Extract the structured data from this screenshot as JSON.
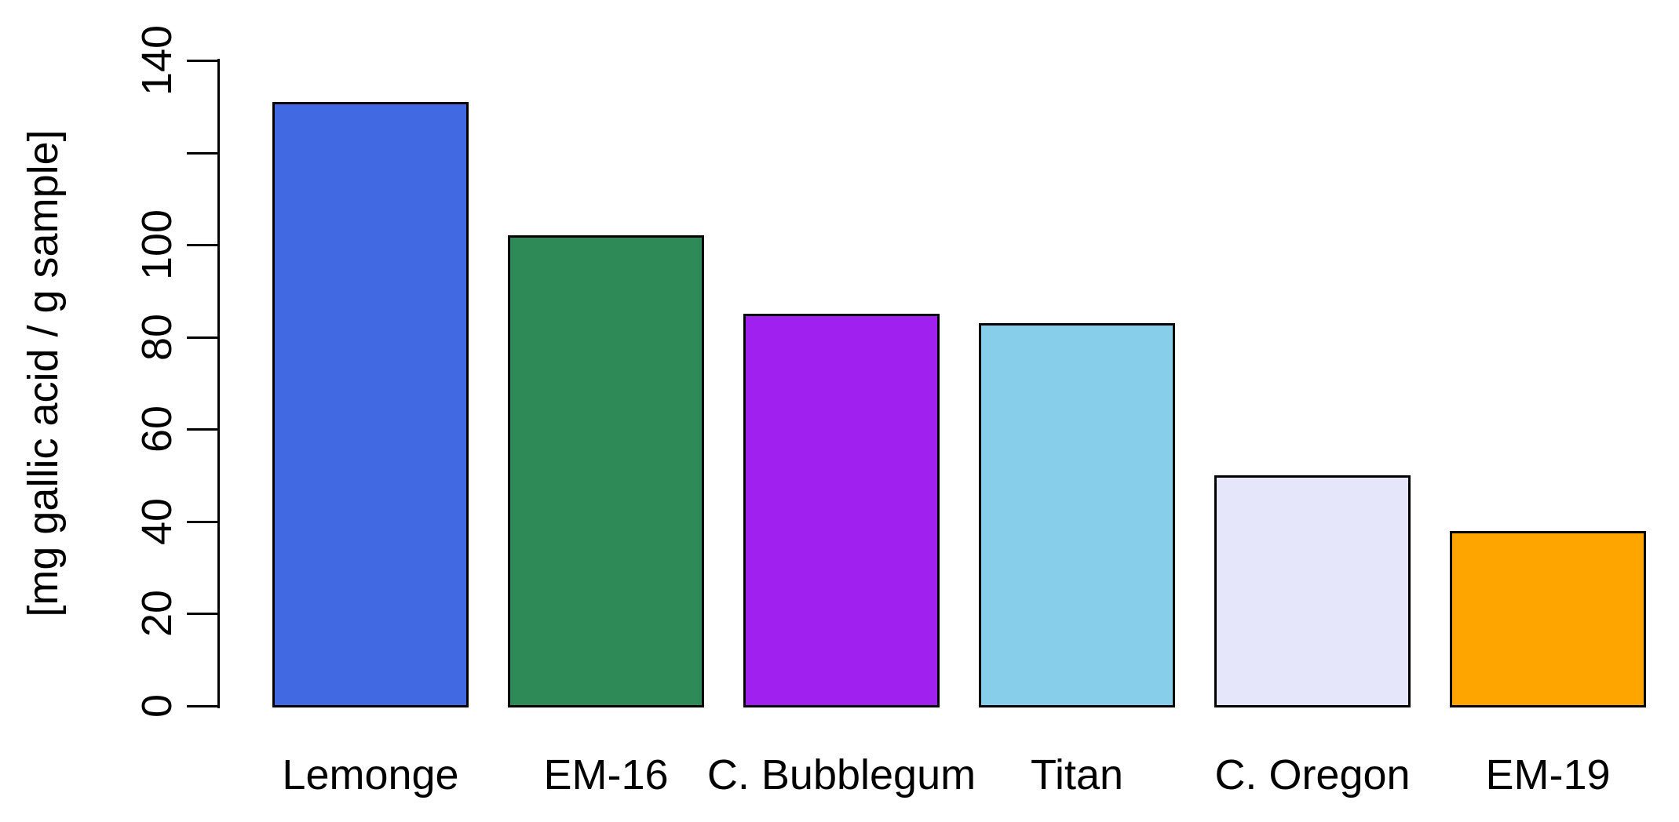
{
  "chart_data": {
    "type": "bar",
    "title": "",
    "xlabel": "",
    "ylabel": "[mg gallic acid / g sample]",
    "categories": [
      "Lemonge",
      "EM-16",
      "C. Bubblegum",
      "Titan",
      "C. Oregon",
      "EM-19"
    ],
    "values": [
      131,
      102,
      85,
      83,
      50,
      38
    ],
    "bar_colors": [
      "#4169E1",
      "#2E8B57",
      "#A020F0",
      "#87CEEB",
      "#E6E6FA",
      "#FFA500"
    ],
    "bar_border_color": "#000000",
    "axis_color": "#000000",
    "text_color": "#000000",
    "background_color": "#FFFFFF",
    "ylim": [
      0,
      140
    ],
    "yticks": [
      {
        "value": 0,
        "label": "0"
      },
      {
        "value": 20,
        "label": "20"
      },
      {
        "value": 40,
        "label": "40"
      },
      {
        "value": 60,
        "label": "60"
      },
      {
        "value": 80,
        "label": "80"
      },
      {
        "value": 100,
        "label": "100"
      },
      {
        "value": 120,
        "label": ""
      },
      {
        "value": 140,
        "label": "140"
      }
    ],
    "grid": false,
    "legend": false
  }
}
